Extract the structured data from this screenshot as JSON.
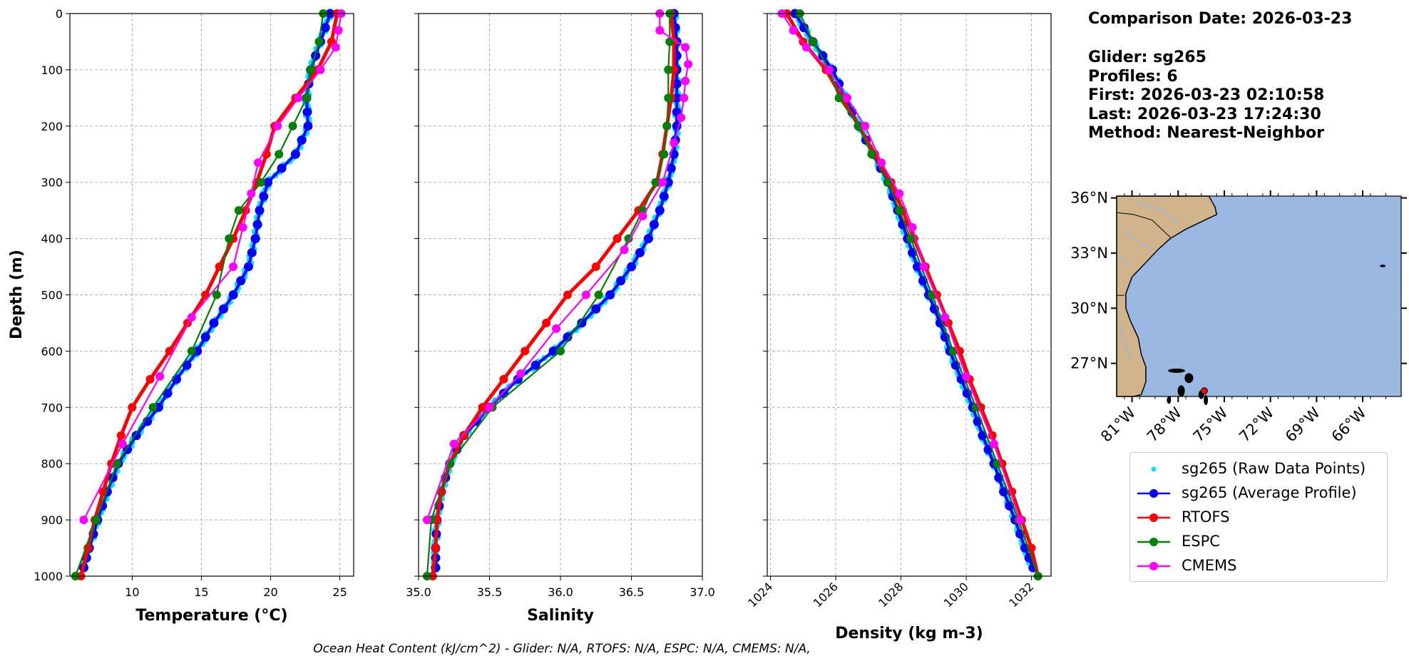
{
  "info": {
    "comparison_date": "Comparison Date: 2026-03-23",
    "glider": "Glider: sg265",
    "profiles": "Profiles: 6",
    "first": "First: 2026-03-23 02:10:58",
    "last": "Last: 2026-03-23 17:24:30",
    "method": "Method: Nearest-Neighbor"
  },
  "footer": "Ocean Heat Content (kJ/cm^2) - Glider: N/A,  RTOFS: N/A,  ESPC: N/A,  CMEMS: N/A,",
  "legend": [
    {
      "label": "sg265 (Raw Data Points)",
      "color": "#00e5ff",
      "style": "points"
    },
    {
      "label": "sg265 (Average Profile)",
      "color": "#0000ff",
      "style": "line-marker"
    },
    {
      "label": "RTOFS",
      "color": "#ff0000",
      "style": "line-marker"
    },
    {
      "label": "ESPC",
      "color": "#008000",
      "style": "line-marker"
    },
    {
      "label": "CMEMS",
      "color": "#ff00ff",
      "style": "line-marker"
    }
  ],
  "map": {
    "lat_labels": [
      "36°N",
      "33°N",
      "30°N",
      "27°N"
    ],
    "lon_labels": [
      "81°W",
      "78°W",
      "75°W",
      "72°W",
      "69°W",
      "66°W"
    ],
    "land_color": "#d2b48c",
    "ocean_color": "#9ab8e2",
    "marker_color": "#ff0000"
  },
  "chart_data": [
    {
      "type": "line",
      "xlabel": "Temperature (°C)",
      "ylabel": "Depth (m)",
      "xlim": [
        5.5,
        26
      ],
      "ylim": [
        1000,
        0
      ],
      "xticks": [
        10,
        15,
        20,
        25
      ],
      "yticks": [
        0,
        100,
        200,
        300,
        400,
        500,
        600,
        700,
        800,
        900,
        1000
      ],
      "grid": true,
      "series": [
        {
          "name": "sg265 (Average Profile)",
          "color": "#0000ff",
          "y": [
            0,
            50,
            100,
            150,
            200,
            250,
            300,
            350,
            400,
            450,
            500,
            550,
            600,
            650,
            700,
            750,
            800,
            850,
            900,
            950,
            985
          ],
          "values": [
            24.3,
            23.6,
            22.9,
            22.6,
            22.7,
            21.8,
            19.8,
            19.2,
            18.9,
            18.4,
            17.3,
            15.9,
            14.7,
            13.2,
            11.9,
            10.3,
            9.0,
            8.2,
            7.5,
            6.9,
            6.5
          ]
        },
        {
          "name": "RTOFS",
          "color": "#ff0000",
          "y": [
            0,
            50,
            100,
            150,
            200,
            250,
            300,
            350,
            400,
            450,
            500,
            550,
            600,
            650,
            700,
            750,
            800,
            850,
            900,
            950,
            1000
          ],
          "values": [
            24.8,
            24.4,
            23.4,
            21.8,
            20.3,
            19.7,
            19.0,
            18.2,
            17.3,
            16.3,
            15.3,
            14.0,
            12.7,
            11.3,
            10.0,
            9.2,
            8.5,
            7.9,
            7.3,
            6.8,
            6.3
          ]
        },
        {
          "name": "ESPC",
          "color": "#008000",
          "y": [
            0,
            50,
            100,
            150,
            200,
            250,
            300,
            350,
            400,
            500,
            600,
            700,
            800,
            900,
            1000
          ],
          "values": [
            23.8,
            23.5,
            22.9,
            22.6,
            21.6,
            20.6,
            19.3,
            17.7,
            17.0,
            16.1,
            14.3,
            11.5,
            8.9,
            7.4,
            5.9
          ]
        },
        {
          "name": "CMEMS",
          "color": "#ff00ff",
          "y": [
            0,
            30,
            60,
            100,
            150,
            200,
            265,
            320,
            380,
            450,
            540,
            645,
            765,
            900
          ],
          "values": [
            25.1,
            24.9,
            24.7,
            23.6,
            22.0,
            20.5,
            19.1,
            18.6,
            18.0,
            17.3,
            14.3,
            12.0,
            9.3,
            6.5
          ]
        }
      ]
    },
    {
      "type": "line",
      "xlabel": "Salinity",
      "xlim": [
        35.0,
        37.0
      ],
      "ylim": [
        1000,
        0
      ],
      "xticks": [
        35.0,
        35.5,
        36.0,
        36.5,
        37.0
      ],
      "grid": true,
      "series": [
        {
          "name": "sg265 (Average Profile)",
          "color": "#0000ff",
          "y": [
            0,
            50,
            100,
            150,
            200,
            250,
            300,
            350,
            400,
            450,
            500,
            550,
            600,
            650,
            700,
            750,
            800,
            850,
            900,
            950,
            985
          ],
          "values": [
            36.8,
            36.82,
            36.82,
            36.82,
            36.82,
            36.8,
            36.76,
            36.7,
            36.62,
            36.5,
            36.35,
            36.15,
            35.95,
            35.7,
            35.5,
            35.32,
            35.22,
            35.16,
            35.13,
            35.12,
            35.12
          ]
        },
        {
          "name": "RTOFS",
          "color": "#ff0000",
          "y": [
            0,
            50,
            100,
            150,
            200,
            250,
            300,
            350,
            400,
            450,
            500,
            550,
            600,
            650,
            700,
            750,
            800,
            850,
            900,
            950,
            1000
          ],
          "values": [
            36.78,
            36.8,
            36.8,
            36.78,
            36.75,
            36.72,
            36.68,
            36.55,
            36.4,
            36.25,
            36.05,
            35.9,
            35.75,
            35.6,
            35.45,
            35.32,
            35.22,
            35.16,
            35.13,
            35.12,
            35.1
          ]
        },
        {
          "name": "ESPC",
          "color": "#008000",
          "y": [
            0,
            50,
            100,
            150,
            200,
            250,
            300,
            350,
            400,
            500,
            600,
            700,
            800,
            900,
            1000
          ],
          "values": [
            36.77,
            36.77,
            36.76,
            36.76,
            36.75,
            36.73,
            36.67,
            36.58,
            36.48,
            36.27,
            36.0,
            35.52,
            35.22,
            35.09,
            35.06
          ]
        },
        {
          "name": "CMEMS",
          "color": "#ff00ff",
          "y": [
            0,
            30,
            60,
            90,
            120,
            150,
            185,
            230,
            300,
            360,
            420,
            500,
            560,
            640,
            700,
            765,
            900
          ],
          "values": [
            36.7,
            36.7,
            36.88,
            36.9,
            36.88,
            36.87,
            36.85,
            36.8,
            36.72,
            36.58,
            36.45,
            36.18,
            35.97,
            35.72,
            35.5,
            35.25,
            35.06
          ]
        }
      ]
    },
    {
      "type": "line",
      "xlabel": "Density (kg m-3)",
      "xlim": [
        1023.9,
        1032.6
      ],
      "ylim": [
        1000,
        0
      ],
      "xticks": [
        1024,
        1026,
        1028,
        1030,
        1032
      ],
      "grid": true,
      "series": [
        {
          "name": "sg265 (Average Profile)",
          "color": "#0000ff",
          "y": [
            0,
            50,
            100,
            150,
            200,
            250,
            300,
            350,
            400,
            450,
            500,
            550,
            600,
            650,
            700,
            750,
            800,
            850,
            900,
            950,
            985
          ],
          "values": [
            1024.75,
            1025.3,
            1025.9,
            1026.3,
            1026.7,
            1027.15,
            1027.6,
            1027.9,
            1028.2,
            1028.5,
            1028.85,
            1029.2,
            1029.5,
            1029.85,
            1030.2,
            1030.5,
            1030.85,
            1031.15,
            1031.5,
            1031.8,
            1032.05
          ]
        },
        {
          "name": "RTOFS",
          "color": "#ff0000",
          "y": [
            0,
            50,
            100,
            150,
            200,
            250,
            300,
            350,
            400,
            450,
            500,
            550,
            600,
            650,
            700,
            750,
            800,
            850,
            900,
            950,
            1000
          ],
          "values": [
            1024.5,
            1025.0,
            1025.7,
            1026.2,
            1026.7,
            1027.2,
            1027.7,
            1028.05,
            1028.4,
            1028.75,
            1029.1,
            1029.45,
            1029.8,
            1030.1,
            1030.45,
            1030.8,
            1031.1,
            1031.4,
            1031.7,
            1032.0,
            1032.2
          ]
        },
        {
          "name": "ESPC",
          "color": "#008000",
          "y": [
            0,
            50,
            100,
            150,
            200,
            250,
            300,
            350,
            400,
            500,
            600,
            700,
            800,
            900,
            1000
          ],
          "values": [
            1024.9,
            1025.3,
            1025.8,
            1026.1,
            1026.7,
            1027.1,
            1027.6,
            1027.95,
            1028.3,
            1028.95,
            1029.6,
            1030.3,
            1030.95,
            1031.6,
            1032.2
          ]
        },
        {
          "name": "CMEMS",
          "color": "#ff00ff",
          "y": [
            0,
            30,
            60,
            100,
            150,
            200,
            265,
            320,
            380,
            450,
            540,
            645,
            765,
            900
          ],
          "values": [
            1024.35,
            1024.7,
            1025.1,
            1025.8,
            1026.35,
            1026.9,
            1027.4,
            1027.95,
            1028.35,
            1028.7,
            1029.35,
            1030.0,
            1030.85,
            1031.65
          ]
        }
      ]
    }
  ]
}
